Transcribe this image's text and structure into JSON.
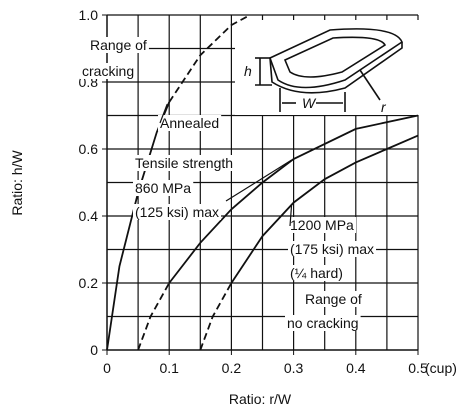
{
  "chart_data": {
    "type": "line",
    "x_label": "Ratio: r/W",
    "y_label": "Ratio: h/W",
    "x_unit_note": "(cup)",
    "xlim": [
      0,
      0.5
    ],
    "ylim": [
      0,
      1.0
    ],
    "xticks": [
      0,
      0.1,
      0.2,
      0.3,
      0.4,
      0.5
    ],
    "yticks": [
      0,
      0.2,
      0.4,
      0.6,
      {
        "value": 0.8,
        "label": "0.8"
      },
      {
        "value": 1.0,
        "label": "1.0"
      }
    ],
    "x_grid": [
      0.05,
      0.1,
      0.15,
      0.2,
      0.25,
      0.3,
      0.35,
      0.4,
      0.45,
      0.5
    ],
    "y_grid": [
      0.1,
      0.2,
      0.3,
      0.4,
      0.5,
      0.6,
      0.7,
      0.8,
      0.9,
      1.0
    ],
    "color": "#111111",
    "series": [
      {
        "name": "Annealed",
        "segments": [
          {
            "dashed": false,
            "x": [
              0,
              0.02,
              0.05,
              0.08,
              0.1
            ],
            "values": [
              0,
              0.25,
              0.47,
              0.65,
              0.74
            ]
          },
          {
            "dashed": true,
            "x": [
              0.1,
              0.15,
              0.2,
              0.23
            ],
            "values": [
              0.74,
              0.88,
              0.97,
              1.0
            ]
          }
        ]
      },
      {
        "segments": [
          {
            "dashed": true,
            "x": [
              0.05,
              0.07,
              0.1
            ],
            "values": [
              0,
              0.1,
              0.2
            ]
          },
          {
            "dashed": false,
            "x": [
              0.1,
              0.15,
              0.2,
              0.25,
              0.3,
              0.4,
              0.5
            ],
            "values": [
              0.2,
              0.32,
              0.42,
              0.5,
              0.57,
              0.66,
              0.7
            ]
          }
        ]
      },
      {
        "segments": [
          {
            "dashed": true,
            "x": [
              0.15,
              0.17,
              0.2
            ],
            "values": [
              0,
              0.1,
              0.2
            ]
          },
          {
            "dashed": false,
            "x": [
              0.2,
              0.25,
              0.3,
              0.35,
              0.4,
              0.45,
              0.5
            ],
            "values": [
              0.2,
              0.34,
              0.44,
              0.51,
              0.56,
              0.6,
              0.64
            ]
          }
        ]
      }
    ],
    "annotations": [
      {
        "lines": [
          "Range of",
          "cracking"
        ]
      },
      {
        "lines": [
          "Tensile strength",
          "860 MPa",
          "(125 ksi) max"
        ]
      },
      {
        "lines": [
          "1200 MPa",
          "(175 ksi) max",
          "(¼ hard)"
        ]
      },
      {
        "lines": [
          "Range of",
          "no cracking"
        ]
      }
    ],
    "inset_labels": [
      "h",
      "W",
      "r"
    ]
  }
}
